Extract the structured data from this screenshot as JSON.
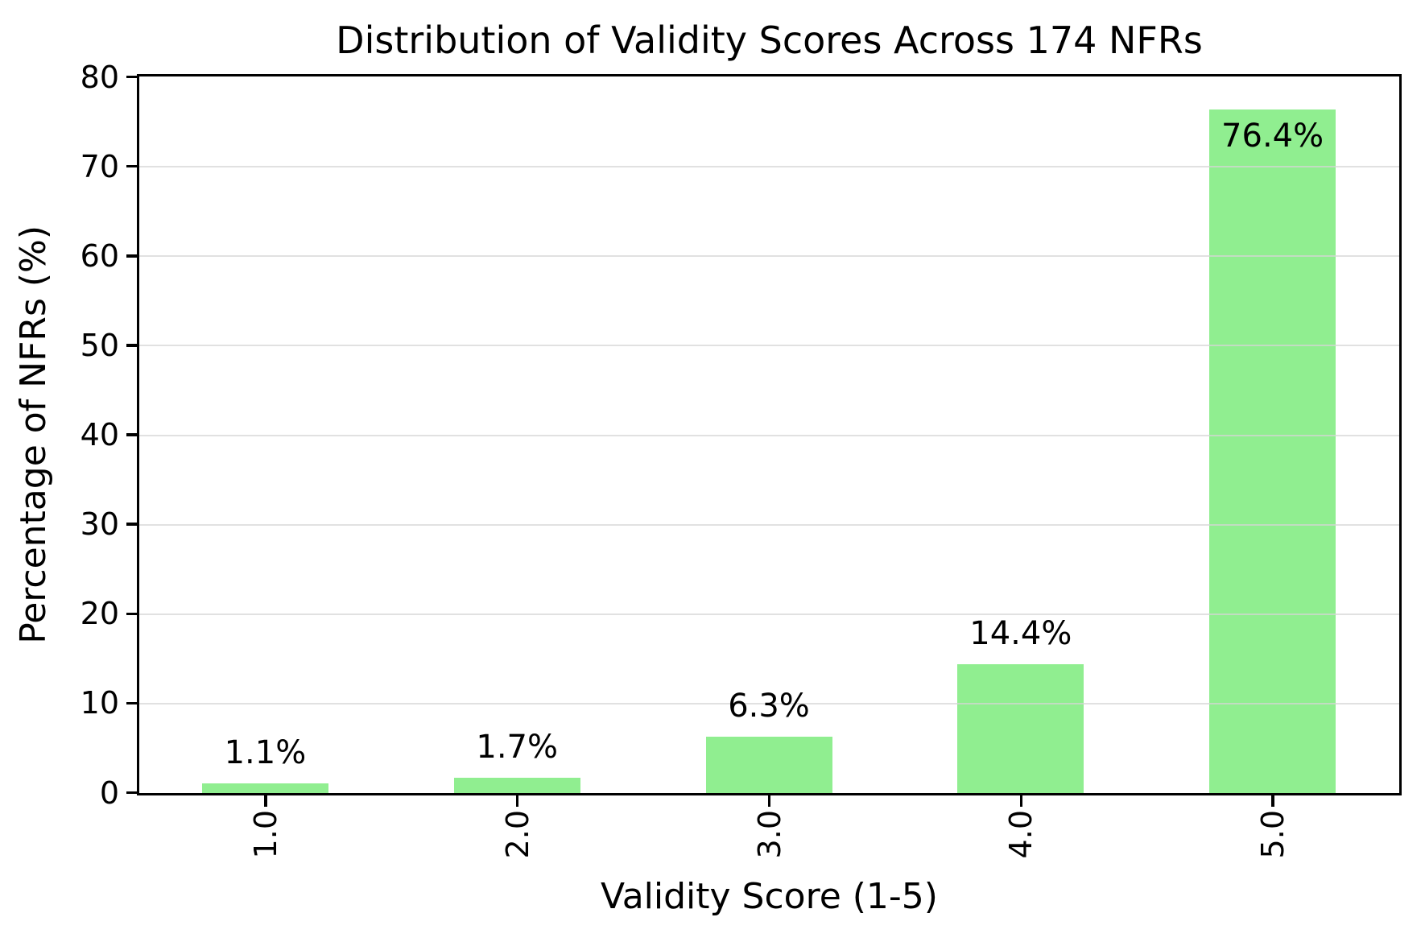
{
  "chart_data": {
    "type": "bar",
    "title": "Distribution of Validity Scores Across 174 NFRs",
    "xlabel": "Validity Score (1-5)",
    "ylabel": "Percentage of NFRs (%)",
    "categories": [
      "1.0",
      "2.0",
      "3.0",
      "4.0",
      "5.0"
    ],
    "values": [
      1.1,
      1.7,
      6.3,
      14.4,
      76.4
    ],
    "bar_labels": [
      "1.1%",
      "1.7%",
      "6.3%",
      "14.4%",
      "76.4%"
    ],
    "ylim": [
      0,
      80
    ],
    "yticks": [
      0,
      10,
      20,
      30,
      40,
      50,
      60,
      70,
      80
    ],
    "grid": "horizontal",
    "legend": "none",
    "colors": {
      "bar": "#90EE90",
      "grid": "#d6d6d6",
      "axis": "#000000",
      "text": "#000000",
      "background": "#ffffff"
    }
  }
}
